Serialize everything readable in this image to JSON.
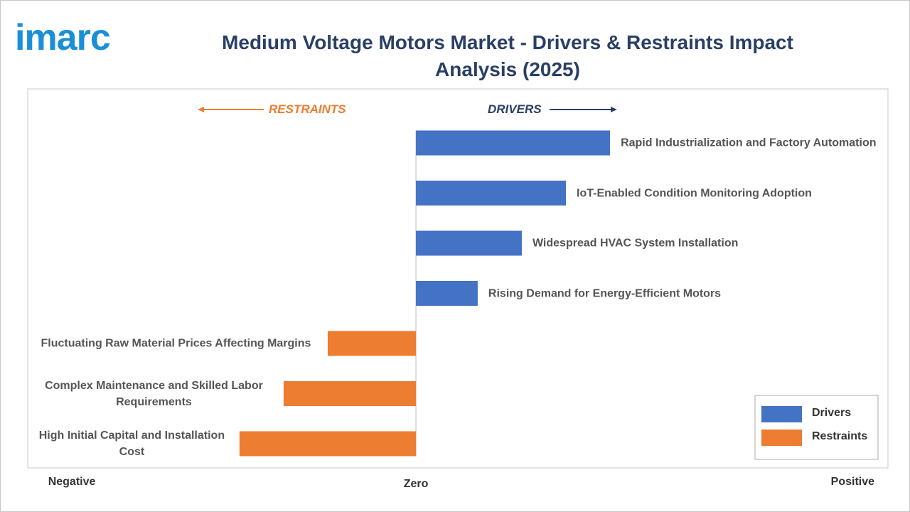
{
  "logo": "imarc",
  "chart_data": {
    "type": "diverging-bar",
    "title": "Medium Voltage Motors Market - Drivers & Restraints Impact Analysis (2025)",
    "annotations": {
      "left": "RESTRAINTS",
      "right": "DRIVERS"
    },
    "categories": [
      "Rapid Industrialization and Factory Automation",
      "IoT-Enabled Condition Monitoring Adoption",
      "Widespread HVAC System Installation",
      "Rising Demand for Energy-Efficient Motors",
      "Fluctuating Raw Material Prices Affecting Margins",
      "Complex Maintenance and Skilled Labor Requirements",
      "High Initial Capital and Installation Cost"
    ],
    "series": [
      {
        "name": "Drivers",
        "color": "#4472c4",
        "values": [
          4.4,
          3.4,
          2.4,
          1.4,
          null,
          null,
          null
        ]
      },
      {
        "name": "Restraints",
        "color": "#ed7d31",
        "values": [
          null,
          null,
          null,
          null,
          -2,
          -3,
          -4
        ]
      }
    ],
    "xlim": [
      -8.8,
      10.7
    ],
    "xticks": [
      {
        "value": -7.8,
        "label": "Negative"
      },
      {
        "value": 0,
        "label": "Zero"
      },
      {
        "value": 9.9,
        "label": "Positive"
      }
    ],
    "legend": "bottom-right"
  }
}
